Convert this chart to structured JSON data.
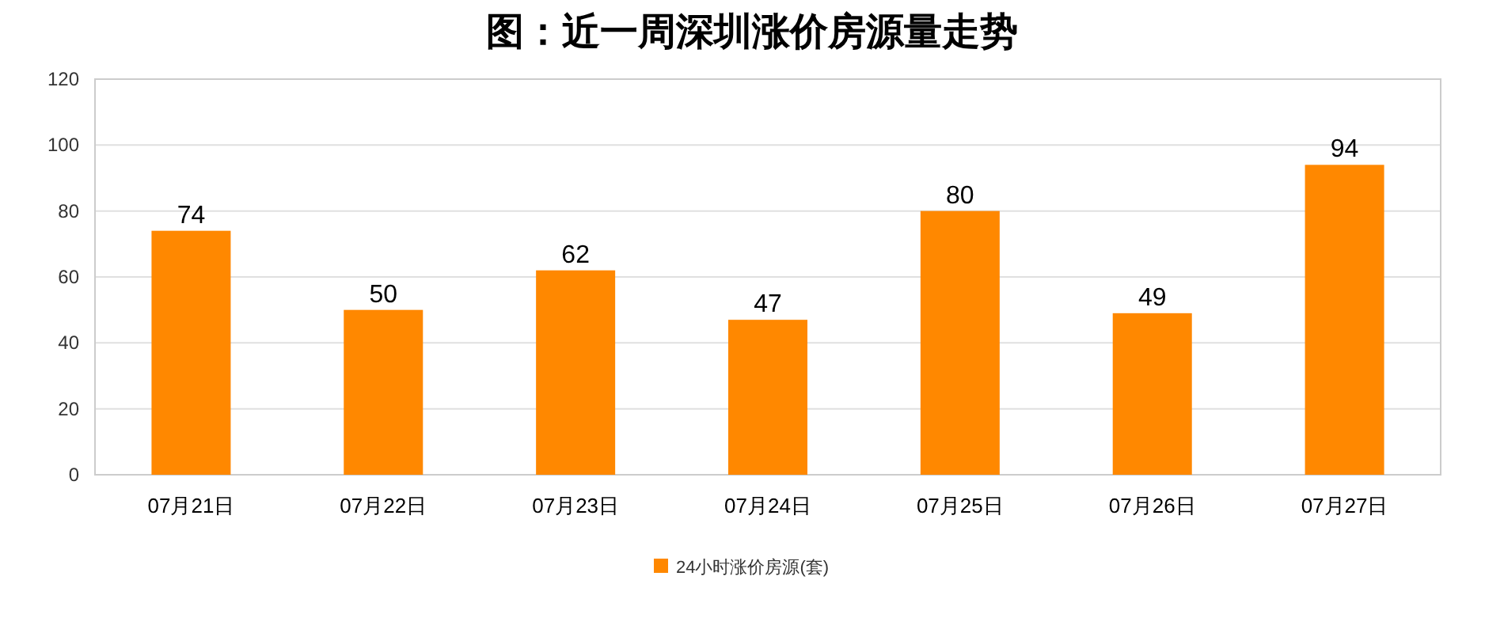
{
  "chart_data": {
    "type": "bar",
    "title": "图：近一周深圳涨价房源量走势",
    "categories": [
      "07月21日",
      "07月22日",
      "07月23日",
      "07月24日",
      "07月25日",
      "07月26日",
      "07月27日"
    ],
    "series": [
      {
        "name": "24小时涨价房源(套)",
        "color": "#ff8800",
        "values": [
          74,
          50,
          62,
          47,
          80,
          49,
          94
        ]
      }
    ],
    "ylim": [
      0,
      120
    ],
    "yticks": [
      0,
      20,
      40,
      60,
      80,
      100,
      120
    ],
    "grid": "y",
    "legend": "bottom",
    "data_labels": true
  }
}
